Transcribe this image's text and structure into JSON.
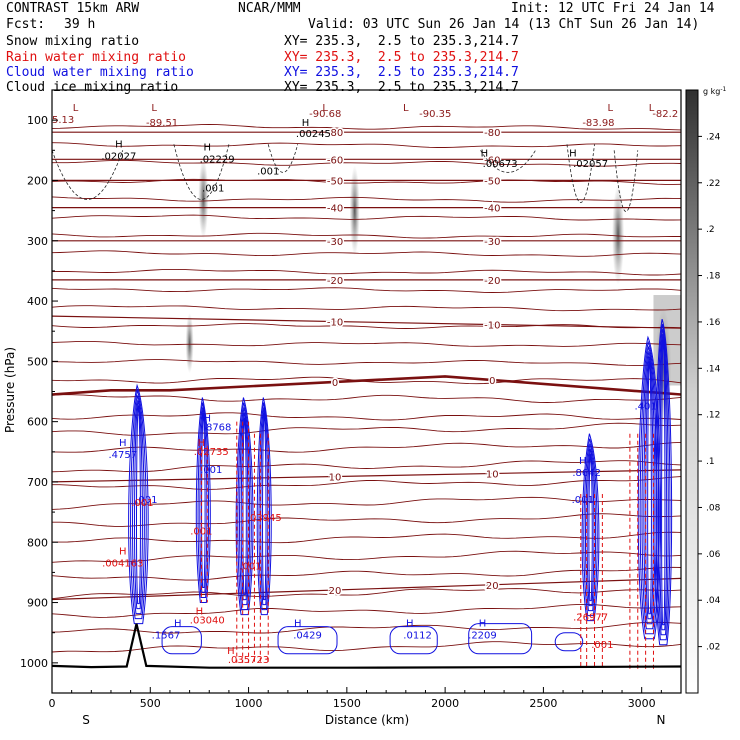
{
  "header": {
    "model": "CONTRAST 15km ARW",
    "org": "NCAR/MMM",
    "init": "Init: 12 UTC Fri 24 Jan 14",
    "fcst_label": "Fcst:",
    "fcst_value": "39 h",
    "valid": "Valid: 03 UTC Sun 26 Jan 14 (13 ChT Sun 26 Jan 14)",
    "fields": [
      {
        "name": "Snow mixing ratio",
        "xy": "XY= 235.3,  2.5 to 235.3,214.7",
        "color": "#000000"
      },
      {
        "name": "Rain water mixing ratio",
        "xy": "XY= 235.3,  2.5 to 235.3,214.7",
        "color": "#e01010"
      },
      {
        "name": "Cloud water mixing ratio",
        "xy": "XY= 235.3,  2.5 to 235.3,214.7",
        "color": "#1010e0"
      },
      {
        "name": "Cloud ice mixing ratio",
        "xy": "XY= 235.3,  2.5 to 235.3,214.7",
        "color": "#000000"
      }
    ]
  },
  "chart_data": {
    "type": "cross-section",
    "xlabel": "Distance (km)",
    "ylabel": "Pressure (hPa)",
    "xlim": [
      0,
      3200
    ],
    "ylim": [
      1050,
      50
    ],
    "x_ticks": [
      0,
      500,
      1000,
      1500,
      2000,
      2500,
      3000
    ],
    "y_ticks": [
      100,
      200,
      300,
      400,
      500,
      600,
      700,
      800,
      900,
      1000
    ],
    "end_labels": {
      "left": "S",
      "right": "N"
    },
    "colorbar": {
      "unit": "g kg",
      "unit_exp": "-1",
      "ticks": [
        ".02",
        ".04",
        ".06",
        ".08",
        ".1",
        ".12",
        ".14",
        ".16",
        ".18",
        ".2",
        ".22",
        ".24"
      ]
    },
    "temperature_contours": [
      {
        "label": "0",
        "values": [
          [
            0,
            555
          ],
          [
            300,
            548
          ],
          [
            600,
            548
          ],
          [
            2000,
            525
          ],
          [
            3200,
            555
          ]
        ]
      },
      {
        "label": "-10",
        "values": [
          [
            0,
            425
          ],
          [
            3200,
            445
          ]
        ]
      },
      {
        "label": "-20",
        "values": [
          [
            0,
            365
          ],
          [
            3200,
            365
          ]
        ]
      },
      {
        "label": "-30",
        "values": [
          [
            0,
            300
          ],
          [
            3200,
            300
          ]
        ]
      },
      {
        "label": "-40",
        "values": [
          [
            0,
            245
          ],
          [
            3200,
            245
          ]
        ]
      },
      {
        "label": "-50",
        "values": [
          [
            0,
            200
          ],
          [
            3200,
            200
          ]
        ]
      },
      {
        "label": "-60",
        "values": [
          [
            0,
            165
          ],
          [
            3200,
            165
          ]
        ]
      },
      {
        "label": "-80",
        "values": [
          [
            0,
            120
          ],
          [
            3200,
            120
          ]
        ]
      },
      {
        "label": "10",
        "values": [
          [
            0,
            700
          ],
          [
            3200,
            680
          ]
        ]
      },
      {
        "label": "20",
        "values": [
          [
            0,
            895
          ],
          [
            3200,
            860
          ]
        ]
      }
    ],
    "terrain": [
      [
        0,
        1005
      ],
      [
        200,
        1007
      ],
      [
        380,
        1006
      ],
      [
        430,
        935
      ],
      [
        480,
        1005
      ],
      [
        800,
        1008
      ],
      [
        1500,
        1008
      ],
      [
        2500,
        1007
      ],
      [
        3200,
        1006
      ]
    ],
    "annotations": [
      {
        "text": "5.13",
        "x": 0,
        "p": 105,
        "color": "#8b1a1a"
      },
      {
        "text": "-89.51",
        "x": 560,
        "p": 110,
        "color": "#8b1a1a"
      },
      {
        "text": "-90.68",
        "x": 1390,
        "p": 95,
        "color": "#8b1a1a"
      },
      {
        "text": "-90.35",
        "x": 1950,
        "p": 95,
        "color": "#8b1a1a"
      },
      {
        "text": "-83.98",
        "x": 2780,
        "p": 110,
        "color": "#8b1a1a"
      },
      {
        "text": "-82.2",
        "x": 3120,
        "p": 95,
        "color": "#8b1a1a"
      },
      {
        "text": ".02027",
        "x": 340,
        "p": 165,
        "color": "#000000"
      },
      {
        "text": ".02229",
        "x": 840,
        "p": 170,
        "color": "#000000"
      },
      {
        "text": ".00245",
        "x": 1330,
        "p": 128,
        "color": "#000000"
      },
      {
        "text": ".00673",
        "x": 2280,
        "p": 178,
        "color": "#000000"
      },
      {
        "text": ".02057",
        "x": 2740,
        "p": 178,
        "color": "#000000"
      },
      {
        "text": ".001",
        "x": 820,
        "p": 218,
        "color": "#000000"
      },
      {
        "text": ".001",
        "x": 1100,
        "p": 190,
        "color": "#000000"
      },
      {
        "text": ".4757",
        "x": 360,
        "p": 660,
        "color": "#1010e0"
      },
      {
        "text": ".8768",
        "x": 840,
        "p": 615,
        "color": "#1010e0"
      },
      {
        "text": ".001",
        "x": 810,
        "p": 685,
        "color": "#1010e0"
      },
      {
        "text": ".001",
        "x": 480,
        "p": 735,
        "color": "#1010e0"
      },
      {
        "text": ".8642",
        "x": 2720,
        "p": 690,
        "color": "#1010e0"
      },
      {
        "text": ".001",
        "x": 2700,
        "p": 735,
        "color": "#1010e0"
      },
      {
        "text": ".401",
        "x": 3020,
        "p": 580,
        "color": "#1010e0"
      },
      {
        "text": ".1567",
        "x": 580,
        "p": 960,
        "color": "#1010e0"
      },
      {
        "text": ".0429",
        "x": 1300,
        "p": 960,
        "color": "#1010e0"
      },
      {
        "text": ".0112",
        "x": 1860,
        "p": 960,
        "color": "#1010e0"
      },
      {
        "text": ".2209",
        "x": 2190,
        "p": 960,
        "color": "#1010e0"
      },
      {
        "text": ".02735",
        "x": 810,
        "p": 655,
        "color": "#e01010"
      },
      {
        "text": ".001",
        "x": 760,
        "p": 787,
        "color": "#e01010"
      },
      {
        "text": ".001",
        "x": 1010,
        "p": 845,
        "color": "#e01010"
      },
      {
        "text": ".03945",
        "x": 1080,
        "p": 765,
        "color": "#e01010"
      },
      {
        "text": ".004163",
        "x": 360,
        "p": 840,
        "color": "#e01010"
      },
      {
        "text": ".03040",
        "x": 790,
        "p": 935,
        "color": "#e01010"
      },
      {
        "text": ".035723",
        "x": 1000,
        "p": 1000,
        "color": "#e01010"
      },
      {
        "text": ".26977",
        "x": 2740,
        "p": 930,
        "color": "#e01010"
      },
      {
        "text": ".001",
        "x": 2800,
        "p": 975,
        "color": "#e01010"
      },
      {
        "text": ".001",
        "x": 460,
        "p": 740,
        "color": "#e01010"
      }
    ],
    "extrema": [
      {
        "text": "L",
        "x": 120,
        "p": 85,
        "color": "#8b1a1a"
      },
      {
        "text": "L",
        "x": 520,
        "p": 85,
        "color": "#8b1a1a"
      },
      {
        "text": "L",
        "x": 1390,
        "p": 85,
        "color": "#8b1a1a"
      },
      {
        "text": "L",
        "x": 1800,
        "p": 85,
        "color": "#8b1a1a"
      },
      {
        "text": "L",
        "x": 2840,
        "p": 85,
        "color": "#8b1a1a"
      },
      {
        "text": "L",
        "x": 3050,
        "p": 85,
        "color": "#8b1a1a"
      },
      {
        "text": "H",
        "x": 340,
        "p": 145,
        "color": "#000000"
      },
      {
        "text": "H",
        "x": 790,
        "p": 150,
        "color": "#000000"
      },
      {
        "text": "H",
        "x": 1290,
        "p": 110,
        "color": "#000000"
      },
      {
        "text": "H",
        "x": 2200,
        "p": 160,
        "color": "#000000"
      },
      {
        "text": "H",
        "x": 2650,
        "p": 160,
        "color": "#000000"
      },
      {
        "text": "H",
        "x": 360,
        "p": 640,
        "color": "#1010e0"
      },
      {
        "text": "H",
        "x": 790,
        "p": 600,
        "color": "#1010e0"
      },
      {
        "text": "H",
        "x": 2700,
        "p": 670,
        "color": "#1010e0"
      },
      {
        "text": "H",
        "x": 640,
        "p": 940,
        "color": "#1010e0"
      },
      {
        "text": "H",
        "x": 1250,
        "p": 940,
        "color": "#1010e0"
      },
      {
        "text": "H",
        "x": 1820,
        "p": 940,
        "color": "#1010e0"
      },
      {
        "text": "H",
        "x": 2190,
        "p": 940,
        "color": "#1010e0"
      },
      {
        "text": "H",
        "x": 760,
        "p": 640,
        "color": "#e01010"
      },
      {
        "text": "H",
        "x": 360,
        "p": 820,
        "color": "#e01010"
      },
      {
        "text": "H",
        "x": 750,
        "p": 920,
        "color": "#e01010"
      },
      {
        "text": "H",
        "x": 910,
        "p": 985,
        "color": "#e01010"
      }
    ]
  }
}
